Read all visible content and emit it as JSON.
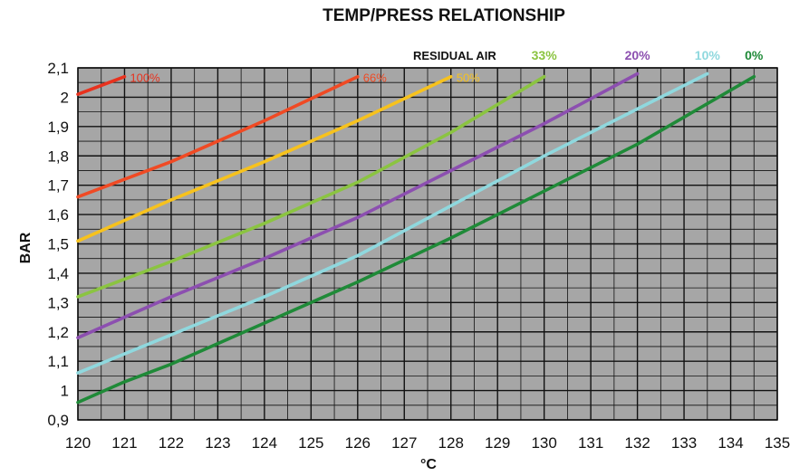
{
  "chart_data": {
    "type": "line",
    "title": "TEMP/PRESS RELATIONSHIP",
    "xlabel": "°C",
    "ylabel": "BAR",
    "legend_title": "RESIDUAL AIR",
    "xlim": [
      120,
      135
    ],
    "ylim": [
      0.9,
      2.1
    ],
    "x_ticks": [
      "120",
      "121",
      "122",
      "123",
      "124",
      "125",
      "126",
      "127",
      "128",
      "129",
      "130",
      "131",
      "132",
      "133",
      "134",
      "135"
    ],
    "y_ticks": [
      "0,9",
      "1",
      "1,1",
      "1,2",
      "1,3",
      "1,4",
      "1,5",
      "1,6",
      "1,7",
      "1,8",
      "1,9",
      "2",
      "2,1"
    ],
    "grid": true,
    "background": "#a6a6a6",
    "series": [
      {
        "name": "100%",
        "color": "#e8321e",
        "x": [
          120,
          121
        ],
        "y": [
          2.01,
          2.07
        ]
      },
      {
        "name": "66%",
        "color": "#f04a24",
        "x": [
          120,
          122,
          124,
          126
        ],
        "y": [
          1.66,
          1.78,
          1.92,
          2.07
        ]
      },
      {
        "name": "50%",
        "color": "#f7c21d",
        "x": [
          120,
          122,
          124,
          126,
          128
        ],
        "y": [
          1.51,
          1.65,
          1.78,
          1.92,
          2.07
        ]
      },
      {
        "name": "33%",
        "color": "#8bc441",
        "x": [
          120,
          122,
          124,
          126,
          128,
          130
        ],
        "y": [
          1.32,
          1.44,
          1.57,
          1.71,
          1.88,
          2.07
        ]
      },
      {
        "name": "20%",
        "color": "#8c4fb0",
        "x": [
          120,
          122,
          124,
          126,
          128,
          130,
          132
        ],
        "y": [
          1.18,
          1.32,
          1.45,
          1.59,
          1.75,
          1.91,
          2.08
        ]
      },
      {
        "name": "10%",
        "color": "#8fd8de",
        "x": [
          120,
          122,
          124,
          126,
          128,
          130,
          132,
          133.5
        ],
        "y": [
          1.06,
          1.19,
          1.32,
          1.46,
          1.63,
          1.8,
          1.96,
          2.08
        ]
      },
      {
        "name": "0%",
        "color": "#1f8a38",
        "x": [
          120,
          121,
          122,
          124,
          126,
          128,
          130,
          132,
          134.5
        ],
        "y": [
          0.96,
          1.03,
          1.09,
          1.23,
          1.37,
          1.52,
          1.68,
          1.84,
          2.07
        ]
      }
    ]
  }
}
